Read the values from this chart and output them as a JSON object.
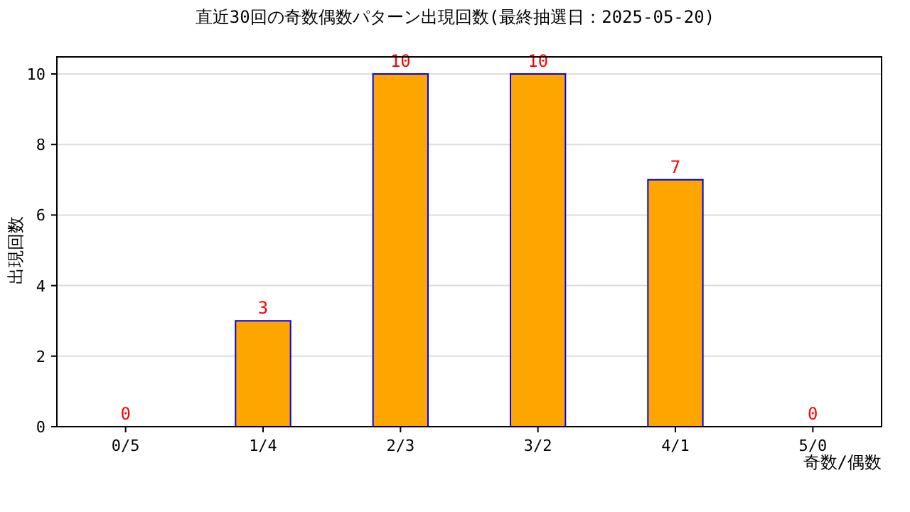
{
  "chart_data": {
    "type": "bar",
    "title": "直近30回の奇数偶数パターン出現回数(最終抽選日：2025-05-20)",
    "xlabel": "奇数/偶数",
    "ylabel": "出現回数",
    "categories": [
      "0/5",
      "1/4",
      "2/3",
      "3/2",
      "4/1",
      "5/0"
    ],
    "values": [
      0,
      3,
      10,
      10,
      7,
      0
    ],
    "color": "#ffa500",
    "ylim": [
      0,
      10
    ],
    "yticks": [
      0,
      2,
      4,
      6,
      8,
      10
    ],
    "grid": "y",
    "data_labels": true
  }
}
